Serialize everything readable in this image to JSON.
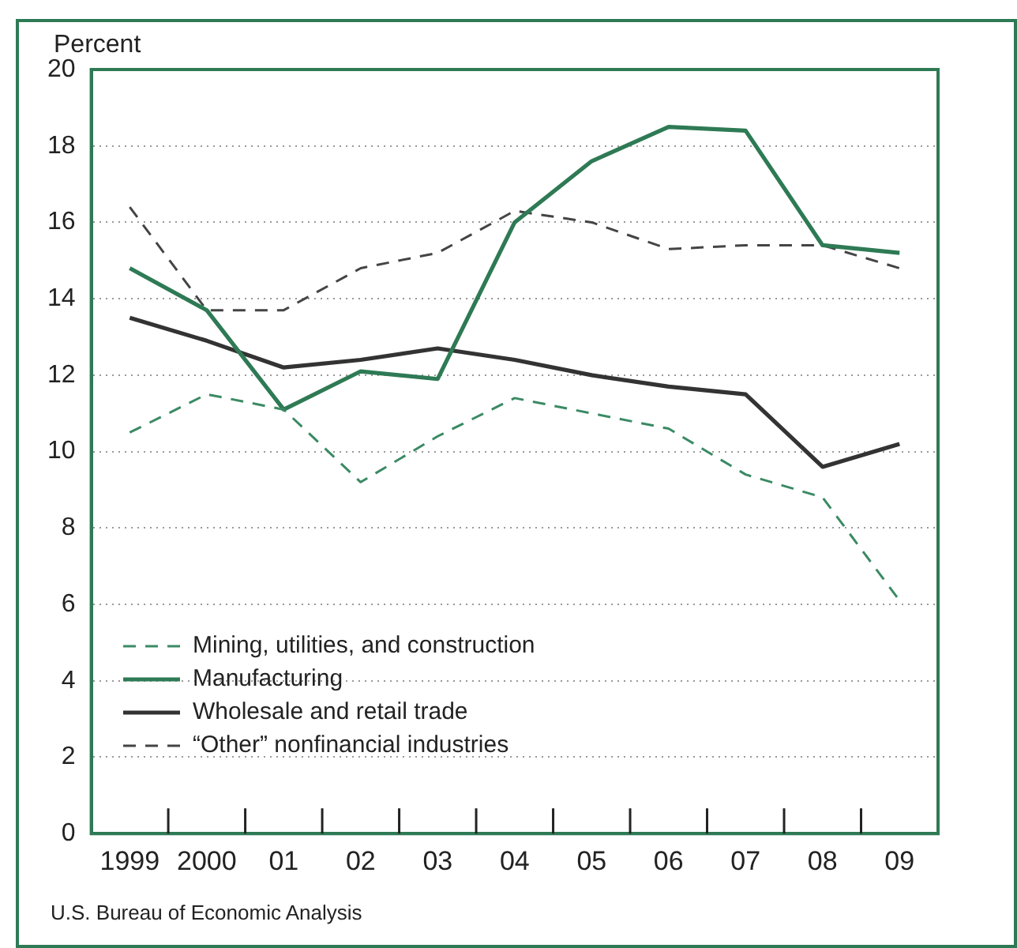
{
  "chart_data": {
    "type": "line",
    "ylabel": "Percent",
    "categories": [
      "1999",
      "2000",
      "01",
      "02",
      "03",
      "04",
      "05",
      "06",
      "07",
      "08",
      "09"
    ],
    "series": [
      {
        "name": "Mining, utilities, and construction",
        "color": "#3a8a64",
        "line_style": "dashed",
        "values": [
          10.5,
          11.5,
          11.1,
          9.2,
          10.4,
          11.4,
          11.0,
          10.6,
          9.4,
          8.8,
          6.1
        ]
      },
      {
        "name": "Manufacturing",
        "color": "#2e7a55",
        "line_style": "solid",
        "values": [
          14.8,
          13.7,
          11.1,
          12.1,
          11.9,
          16.0,
          17.6,
          18.5,
          18.4,
          15.4,
          15.2
        ]
      },
      {
        "name": "Wholesale and retail trade",
        "color": "#333333",
        "line_style": "solid",
        "values": [
          13.5,
          12.9,
          12.2,
          12.4,
          12.7,
          12.4,
          12.0,
          11.7,
          11.5,
          9.6,
          10.2
        ]
      },
      {
        "name": "“Other” nonfinancial industries",
        "color": "#444444",
        "line_style": "dashed",
        "values": [
          16.4,
          13.7,
          13.7,
          14.8,
          15.2,
          16.3,
          16.0,
          15.3,
          15.4,
          15.4,
          14.8
        ]
      }
    ],
    "ylim": [
      0,
      20
    ],
    "yticks": [
      0,
      2,
      4,
      6,
      8,
      10,
      12,
      14,
      16,
      18,
      20
    ],
    "grid": "y",
    "legend": "bottom left",
    "marker": "none",
    "annotations": [
      "U.S. Bureau of Economic Analysis"
    ]
  }
}
